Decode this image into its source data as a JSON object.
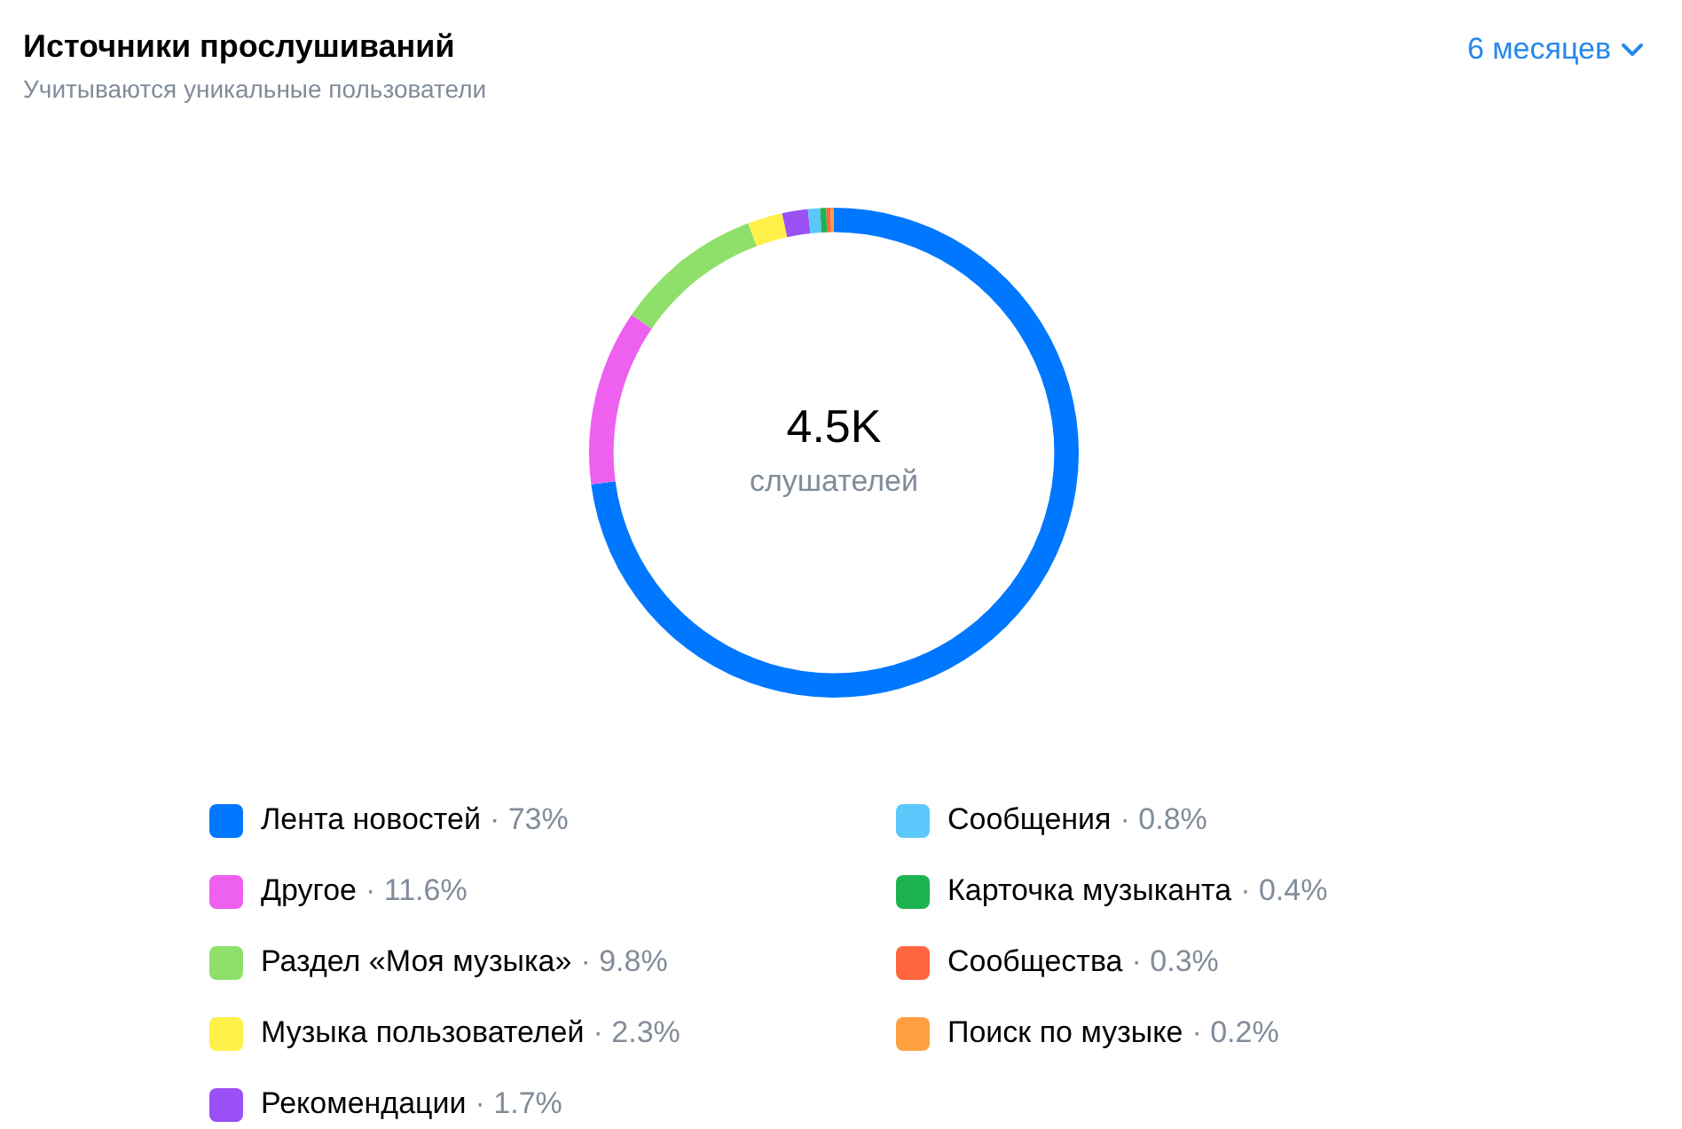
{
  "chart_data": {
    "type": "donut",
    "title": "Источники прослушиваний",
    "subtitle": "Учитываются уникальные пользователи",
    "categories": [
      "Лента новостей",
      "Другое",
      "Раздел «Моя музыка»",
      "Музыка пользователей",
      "Рекомендации",
      "Сообщения",
      "Карточка музыканта",
      "Сообщества",
      "Поиск по музыке"
    ],
    "values": [
      73,
      11.6,
      9.8,
      2.3,
      1.7,
      0.8,
      0.4,
      0.3,
      0.2
    ],
    "colors": [
      "#0077ff",
      "#ee60f0",
      "#8ee06a",
      "#fff04a",
      "#9a50f5",
      "#5ac8fa",
      "#1cb350",
      "#ff6640",
      "#ffa040"
    ],
    "annotations": [
      "4.5K",
      "слушателей",
      "6 месяцев"
    ],
    "value_labels": [
      "· 73%",
      "· 11.6%",
      "· 9.8%",
      "· 2.3%",
      "· 1.7%",
      "· 0.8%",
      "· 0.4%",
      "· 0.3%",
      "· 0.2%"
    ],
    "legend": "bottom"
  }
}
